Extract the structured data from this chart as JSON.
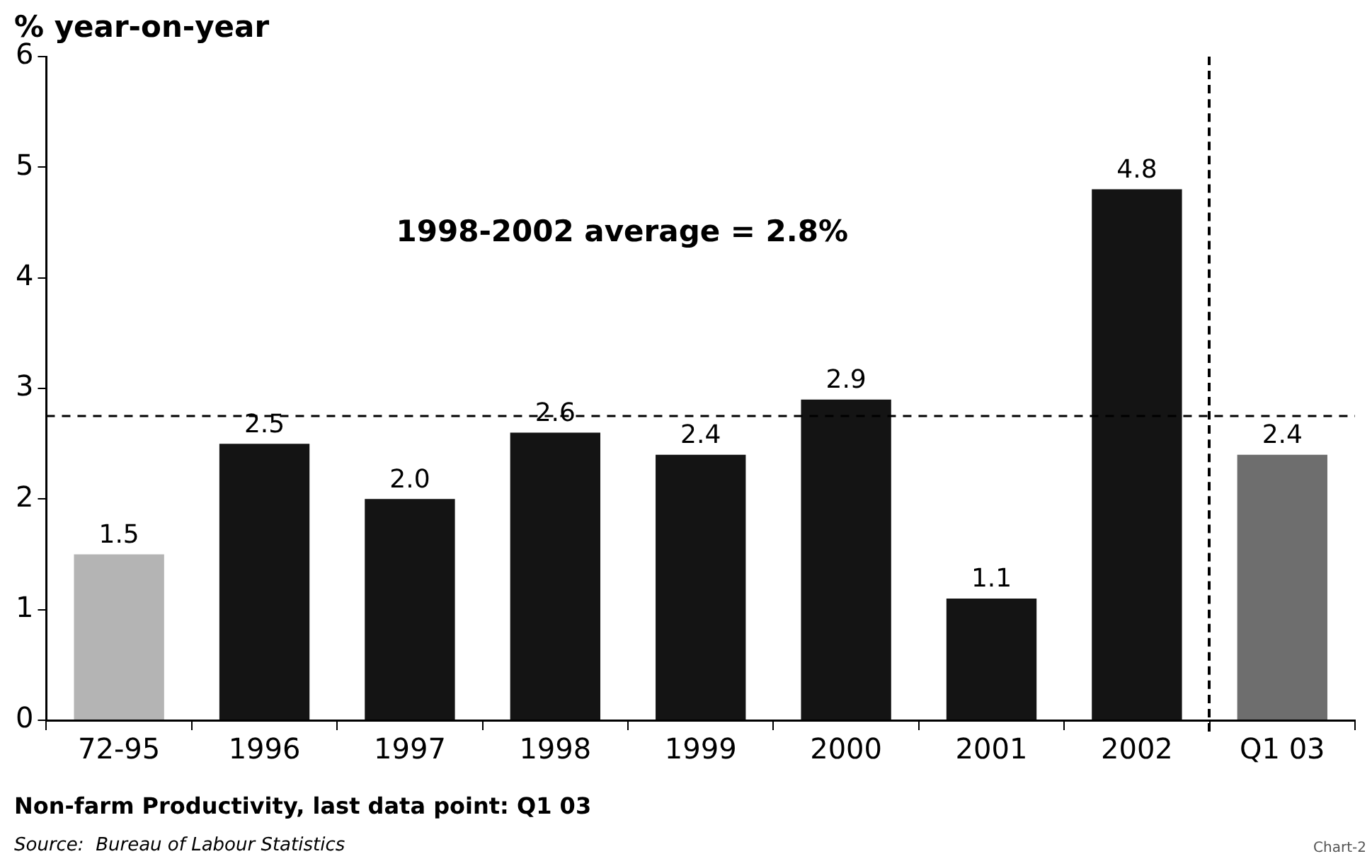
{
  "chart_data": {
    "type": "bar",
    "ylabel": "% year-on-year",
    "categories": [
      "72-95",
      "1996",
      "1997",
      "1998",
      "1999",
      "2000",
      "2001",
      "2002",
      "Q1 03"
    ],
    "values": [
      1.5,
      2.5,
      2.0,
      2.6,
      2.4,
      2.9,
      1.1,
      4.8,
      2.4
    ],
    "value_labels": [
      "1.5",
      "2.5",
      "2.0",
      "2.6",
      "2.4",
      "2.9",
      "1.1",
      "4.8",
      "2.4"
    ],
    "colors": [
      "#b4b4b4",
      "#141414",
      "#141414",
      "#141414",
      "#141414",
      "#141414",
      "#141414",
      "#141414",
      "#6e6e6e"
    ],
    "ylim": [
      0,
      6
    ],
    "yticks": [
      0,
      1,
      2,
      3,
      4,
      5,
      6
    ],
    "grid": false,
    "legend": false,
    "ref_lines": [
      {
        "axis": "y",
        "value": 2.75,
        "line_style": "dashed",
        "color": "#000000"
      }
    ],
    "annotations": [
      "1998-2002 average = 2.8%",
      "Non-farm Productivity, last data point: Q1 03",
      "Source:  Bureau of Labour Statistics",
      "Chart-2"
    ]
  }
}
